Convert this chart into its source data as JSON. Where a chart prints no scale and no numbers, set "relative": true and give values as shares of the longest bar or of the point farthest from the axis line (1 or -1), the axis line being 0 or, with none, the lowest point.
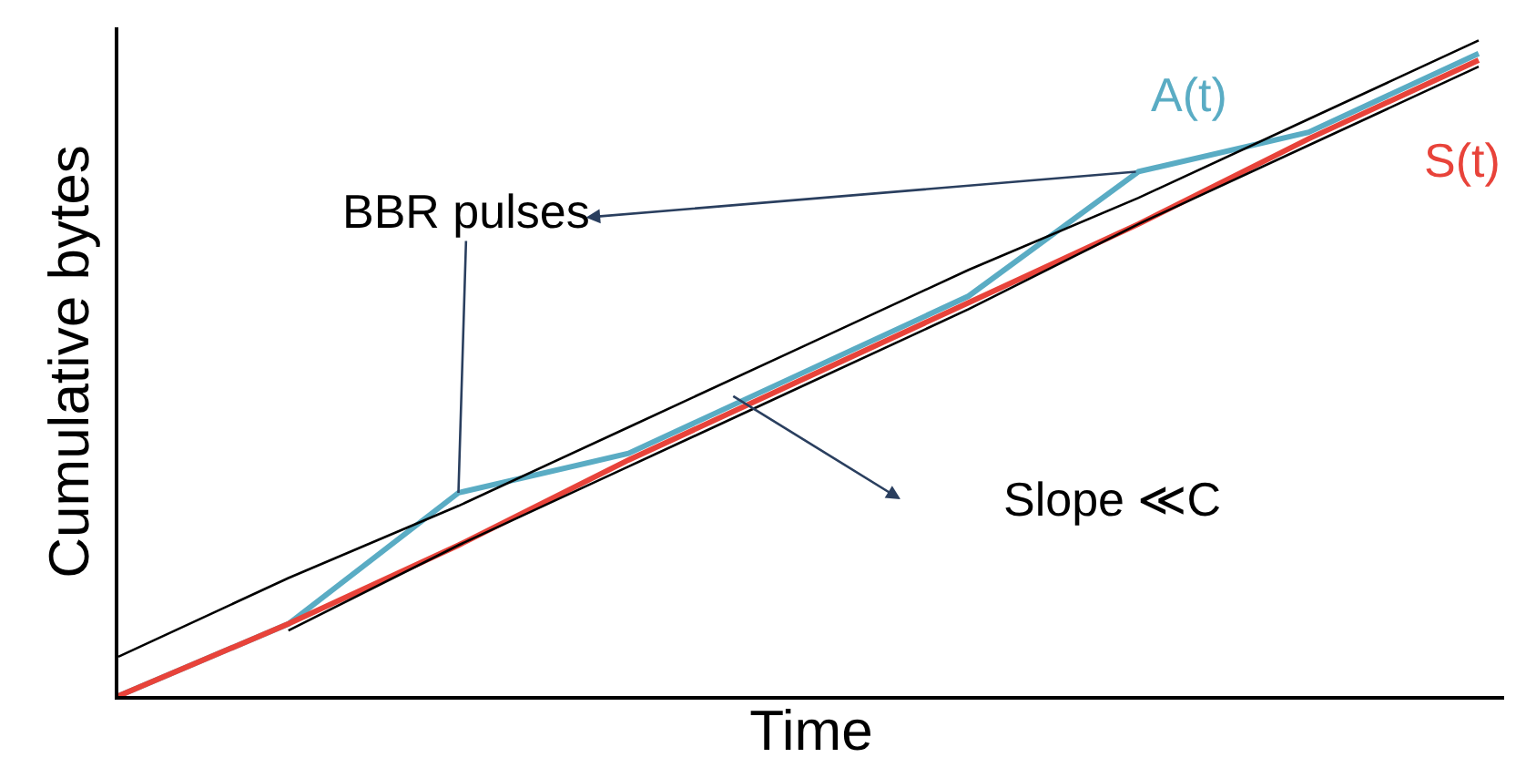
{
  "chart_data": {
    "type": "line",
    "relative": true,
    "xlabel": "Time",
    "ylabel": "Cumulative bytes",
    "categories": [
      null,
      null,
      null,
      null,
      null,
      null,
      null,
      null,
      null
    ],
    "series": [
      {
        "name": "A(t)",
        "color": "#5aacc4",
        "values": [
          0,
          0.11,
          0.31,
          0.37,
          0.49,
          0.61,
          0.8,
          0.86,
          0.98
        ]
      },
      {
        "name": "S(t)",
        "color": "#e8433a",
        "values": [
          0,
          0.11,
          0.23,
          0.36,
          0.48,
          0.6,
          0.72,
          0.85,
          0.97
        ]
      },
      {
        "color": "#000000",
        "values": [
          0.06,
          0.18,
          0.29,
          0.41,
          0.53,
          0.65,
          0.76,
          0.88,
          1
        ]
      },
      {
        "color": "#000000",
        "values": [
          null,
          0.1,
          0.23,
          0.35,
          0.47,
          0.59,
          0.72,
          0.84,
          0.96
        ]
      }
    ],
    "annotations": [
      "BBR pulses",
      "Slope ≪C"
    ],
    "legend": false,
    "marker": "none"
  }
}
